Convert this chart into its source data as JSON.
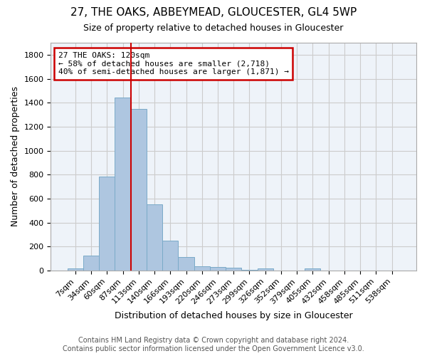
{
  "title": "27, THE OAKS, ABBEYMEAD, GLOUCESTER, GL4 5WP",
  "subtitle": "Size of property relative to detached houses in Gloucester",
  "xlabel": "Distribution of detached houses by size in Gloucester",
  "ylabel": "Number of detached properties",
  "bar_labels": [
    "7sqm",
    "34sqm",
    "60sqm",
    "87sqm",
    "113sqm",
    "140sqm",
    "166sqm",
    "193sqm",
    "220sqm",
    "246sqm",
    "273sqm",
    "299sqm",
    "326sqm",
    "352sqm",
    "379sqm",
    "405sqm",
    "432sqm",
    "458sqm",
    "485sqm",
    "511sqm",
    "538sqm"
  ],
  "bar_values": [
    15,
    125,
    785,
    1445,
    1345,
    555,
    248,
    110,
    35,
    28,
    25,
    5,
    18,
    0,
    0,
    18,
    0,
    0,
    0,
    0,
    0
  ],
  "bar_color": "#aec6e0",
  "bar_edgecolor": "#7aaac8",
  "vline_x": 3.5,
  "vline_color": "#cc0000",
  "ylim": [
    0,
    1900
  ],
  "yticks": [
    0,
    200,
    400,
    600,
    800,
    1000,
    1200,
    1400,
    1600,
    1800
  ],
  "annotation_text": "27 THE OAKS: 120sqm\n← 58% of detached houses are smaller (2,718)\n40% of semi-detached houses are larger (1,871) →",
  "annotation_box_edgecolor": "#cc0000",
  "footer_line1": "Contains HM Land Registry data © Crown copyright and database right 2024.",
  "footer_line2": "Contains public sector information licensed under the Open Government Licence v3.0.",
  "bg_color": "#ffffff",
  "grid_color": "#cccccc",
  "title_fontsize": 11,
  "subtitle_fontsize": 9,
  "ylabel_fontsize": 9,
  "xlabel_fontsize": 9,
  "tick_fontsize": 8,
  "annot_fontsize": 8,
  "footer_fontsize": 7
}
